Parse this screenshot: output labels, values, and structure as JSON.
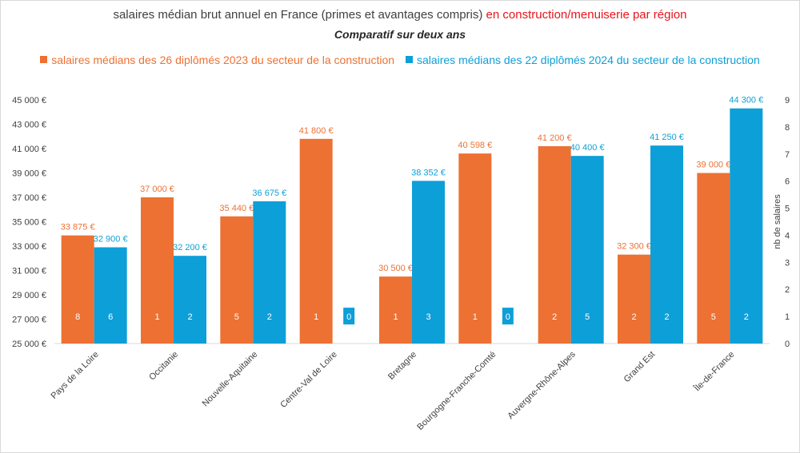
{
  "title": {
    "main": "salaires médian brut annuel en France (primes et avantages compris) ",
    "highlight": "en construction/menuiserie par région",
    "subtitle": "Comparatif sur deux ans"
  },
  "colors": {
    "series_2023": "#ed7132",
    "series_2024": "#0d9fd8",
    "title_highlight": "#e8141c"
  },
  "chart_data": {
    "type": "bar",
    "categories": [
      "Pays de la Loire",
      "Occitanie",
      "Nouvelle-Aquitaine",
      "Centre-Val de Loire",
      "Bretagne",
      "Bourgogne-Franche-Comté",
      "Auvergne-Rhône-Alpes",
      "Grand Est",
      "Île-de-France"
    ],
    "series": [
      {
        "name": "salaires médians des 26 diplômés 2023 du secteur de la construction",
        "values": [
          33875,
          37000,
          35440,
          41800,
          30500,
          40598,
          41200,
          32300,
          39000
        ],
        "labels": [
          "33 875 €",
          "37 000 €",
          "35 440 €",
          "41 800 €",
          "30 500 €",
          "40 598 €",
          "41 200 €",
          "32 300 €",
          "39 000 €"
        ],
        "counts": [
          8,
          1,
          5,
          1,
          1,
          1,
          2,
          2,
          5
        ]
      },
      {
        "name": "salaires médians des 22 diplômés 2024 du secteur de la construction",
        "values": [
          32900,
          32200,
          36675,
          null,
          38352,
          null,
          40400,
          41250,
          44300
        ],
        "labels": [
          "32 900 €",
          "32 200 €",
          "36 675 €",
          "",
          "38 352 €",
          "",
          "40 400 €",
          "41 250 €",
          "44 300 €"
        ],
        "counts": [
          6,
          2,
          2,
          0,
          3,
          0,
          5,
          2,
          2
        ]
      }
    ],
    "ylim": [
      25000,
      45000
    ],
    "yticks": [
      "25 000 €",
      "27 000 €",
      "29 000 €",
      "31 000 €",
      "33 000 €",
      "35 000 €",
      "37 000 €",
      "39 000 €",
      "41 000 €",
      "43 000 €",
      "45 000 €"
    ],
    "y2lim": [
      0,
      9
    ],
    "y2ticks": [
      "0",
      "1",
      "2",
      "3",
      "4",
      "5",
      "6",
      "7",
      "8",
      "9"
    ],
    "y2label": "nb de salaires",
    "legend_position": "top"
  }
}
